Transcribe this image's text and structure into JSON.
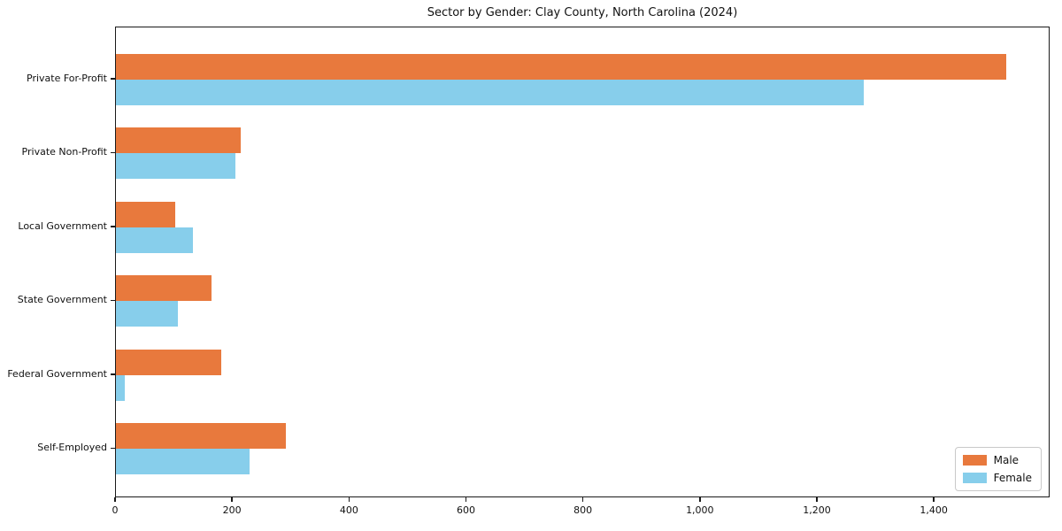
{
  "title": "Sector by Gender: Clay County, North Carolina (2024)",
  "chart_data": {
    "type": "bar",
    "orientation": "horizontal",
    "title": "Sector by Gender: Clay County, North Carolina (2024)",
    "categories": [
      "Private For-Profit",
      "Private Non-Profit",
      "Local Government",
      "State Government",
      "Federal Government",
      "Self-Employed"
    ],
    "series": [
      {
        "name": "Male",
        "color": "#e8793d",
        "values": [
          1522,
          213,
          102,
          163,
          180,
          290
        ]
      },
      {
        "name": "Female",
        "color": "#87ceeb",
        "values": [
          1278,
          205,
          131,
          106,
          15,
          228
        ]
      }
    ],
    "xlabel": "",
    "ylabel": "",
    "xlim": [
      0,
      1598
    ],
    "xticks": [
      0,
      200,
      400,
      600,
      800,
      1000,
      1200,
      1400
    ],
    "xtick_labels": [
      "0",
      "200",
      "400",
      "600",
      "800",
      "1,000",
      "1,200",
      "1,400"
    ],
    "grid": false,
    "legend_position": "lower right"
  },
  "legend": {
    "items": [
      {
        "label": "Male",
        "color": "#e8793d"
      },
      {
        "label": "Female",
        "color": "#87ceeb"
      }
    ]
  }
}
